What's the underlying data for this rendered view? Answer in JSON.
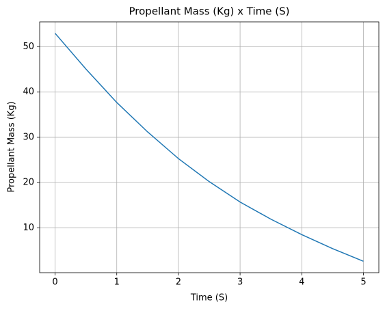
{
  "chart_data": {
    "type": "line",
    "title": "Propellant Mass (Kg) x Time (S)",
    "x_label": "Time (S)",
    "y_label": "Propellant Mass (Kg)",
    "x": [
      0,
      0.5,
      1,
      1.5,
      2,
      2.5,
      3,
      3.5,
      4,
      4.5,
      5
    ],
    "series": [
      {
        "color": "#1f77b4",
        "values": [
          53,
          45.1,
          37.7,
          31.2,
          25.3,
          20.2,
          15.7,
          11.9,
          8.5,
          5.4,
          2.6
        ]
      }
    ],
    "xlim": [
      -0.25,
      5.25
    ],
    "xticks": [
      0,
      1,
      2,
      3,
      4,
      5
    ],
    "ylim": [
      0.08,
      55.52
    ],
    "yticks": [
      10,
      20,
      30,
      40,
      50
    ],
    "grid": true
  }
}
